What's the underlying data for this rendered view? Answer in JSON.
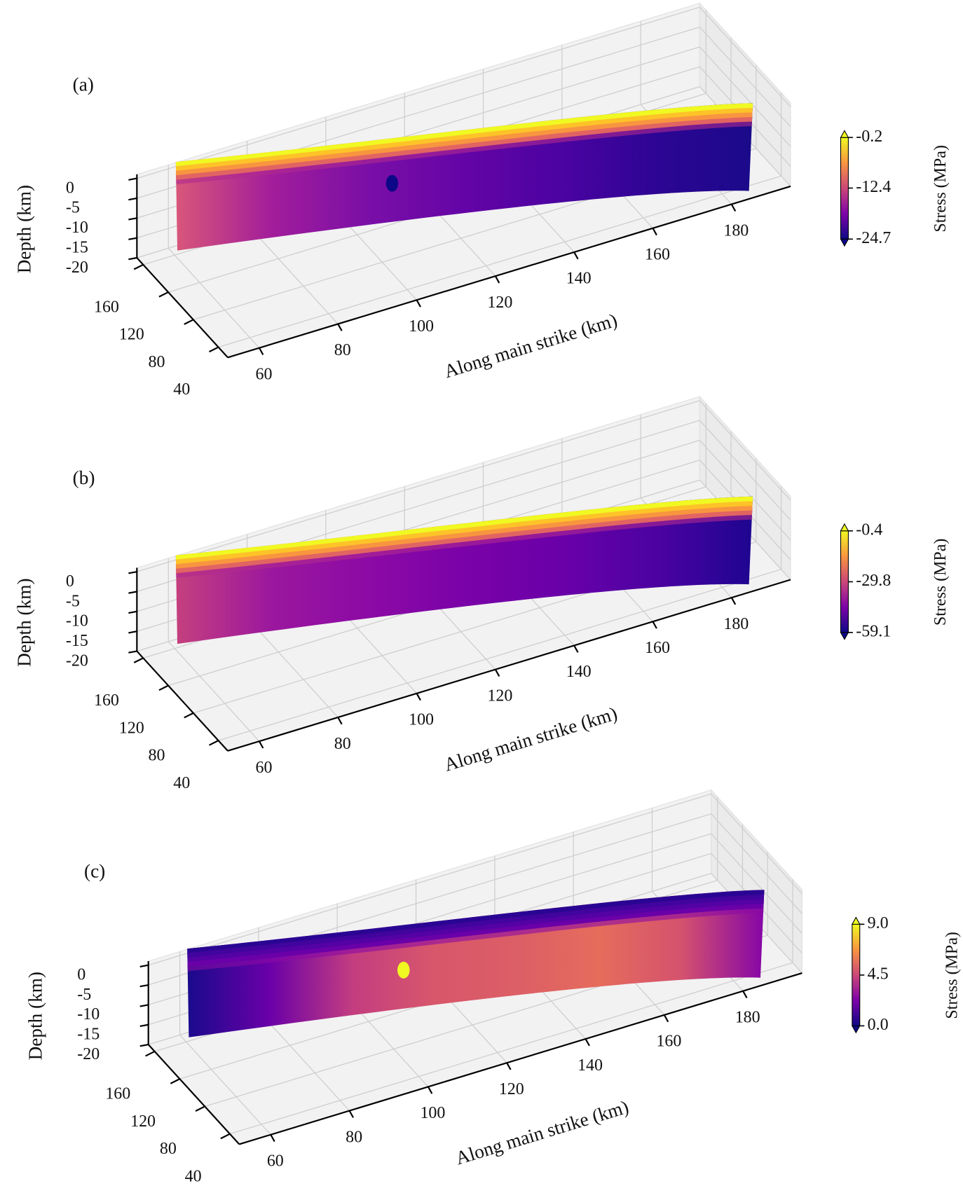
{
  "chart_data": [
    {
      "type": "surface3d",
      "panel_label": "(a)",
      "xlabel": "Along main strike (km)",
      "zlabel": "Depth (km)",
      "xlim": [
        52,
        195
      ],
      "ylim": [
        25,
        170
      ],
      "zlim": [
        -20,
        1
      ],
      "xticks": [
        60,
        80,
        100,
        120,
        140,
        160,
        180
      ],
      "yticks": [
        40,
        80,
        120,
        160
      ],
      "zticks": [
        0,
        -5,
        -10,
        -15,
        -20
      ],
      "surface_colors": [
        "#d9577a",
        "#a21d9a",
        "#7a0fa7",
        "#6404a6",
        "#4b03a1",
        "#2d0594",
        "#1a0a8a"
      ],
      "rim_colors": [
        "#f0f921",
        "#fdc328",
        "#f89540",
        "#e16462",
        "#b12a90"
      ],
      "marker_color": "#0d0887",
      "colorbar": {
        "label": "Stress (MPa)",
        "cmap": "plasma",
        "lim": [
          -24.7,
          -0.2
        ],
        "ticks": [
          -0.2,
          -12.4,
          -24.7
        ]
      }
    },
    {
      "type": "surface3d",
      "panel_label": "(b)",
      "xlabel": "Along main strike (km)",
      "zlabel": "Depth (km)",
      "xlim": [
        52,
        195
      ],
      "ylim": [
        25,
        170
      ],
      "zlim": [
        -20,
        1
      ],
      "xticks": [
        60,
        80,
        100,
        120,
        140,
        160,
        180
      ],
      "yticks": [
        40,
        80,
        120,
        160
      ],
      "zticks": [
        0,
        -5,
        -10,
        -15,
        -20
      ],
      "surface_colors": [
        "#c5407e",
        "#9b179e",
        "#8c0aa5",
        "#7a02a8",
        "#6a00a8",
        "#4c02a1",
        "#1e0590"
      ],
      "rim_colors": [
        "#f0f921",
        "#fdc328",
        "#f89540",
        "#e16462",
        "#b12a90"
      ],
      "colorbar": {
        "label": "Stress (MPa)",
        "cmap": "plasma",
        "lim": [
          -59.1,
          -0.4
        ],
        "ticks": [
          -0.4,
          -29.8,
          -59.1
        ]
      }
    },
    {
      "type": "surface3d",
      "panel_label": "(c)",
      "xlabel": "Along main strike (km)",
      "zlabel": "Depth (km)",
      "xlim": [
        52,
        195
      ],
      "ylim": [
        25,
        170
      ],
      "zlim": [
        -20,
        1
      ],
      "xticks": [
        60,
        80,
        100,
        120,
        140,
        160,
        180
      ],
      "yticks": [
        40,
        80,
        120,
        160
      ],
      "zticks": [
        0,
        -5,
        -10,
        -15,
        -20
      ],
      "surface_colors": [
        "#1a0a8c",
        "#6a00a8",
        "#c33d80",
        "#d8576b",
        "#dc5e66",
        "#e66c5c",
        "#d4526e",
        "#8405a7"
      ],
      "rim_colors": [
        "#2a0593",
        "#41049d",
        "#5402a3",
        "#6a00a8",
        "#8b0aa5"
      ],
      "marker_color": "#f0f921",
      "colorbar": {
        "label": "Stress (MPa)",
        "cmap": "plasma",
        "lim": [
          0,
          9
        ],
        "ticks": [
          {
            "value": 9,
            "label": "9.0"
          },
          {
            "value": 4.5,
            "label": "4.5"
          },
          {
            "value": 0,
            "label": "0.0"
          }
        ]
      }
    }
  ]
}
